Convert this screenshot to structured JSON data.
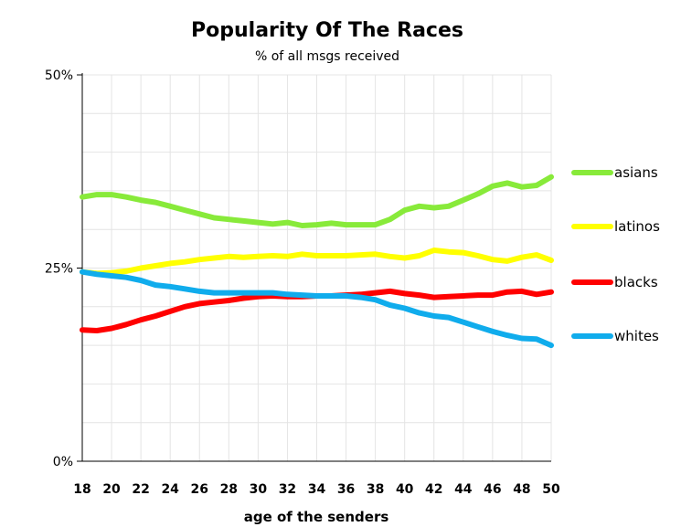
{
  "chart_data": {
    "type": "line",
    "title": "Popularity Of The Races",
    "subtitle": "% of all msgs received",
    "xlabel": "age of the senders",
    "ylabel": "",
    "x": [
      18,
      19,
      20,
      21,
      22,
      23,
      24,
      25,
      26,
      27,
      28,
      29,
      30,
      31,
      32,
      33,
      34,
      35,
      36,
      37,
      38,
      39,
      40,
      41,
      42,
      43,
      44,
      45,
      46,
      47,
      48,
      49,
      50
    ],
    "xlim": [
      18,
      50
    ],
    "ylim": [
      0,
      50
    ],
    "x_ticks": [
      "18",
      "20",
      "22",
      "24",
      "26",
      "28",
      "30",
      "32",
      "34",
      "36",
      "38",
      "40",
      "42",
      "44",
      "46",
      "48",
      "50"
    ],
    "y_ticks": [
      {
        "value": 0,
        "label": "0%"
      },
      {
        "value": 25,
        "label": "25%"
      },
      {
        "value": 50,
        "label": "50%"
      }
    ],
    "grid": true,
    "legend_position": "right",
    "series": [
      {
        "name": "asians",
        "color": "#88ea3a",
        "values": [
          34.2,
          34.5,
          34.5,
          34.2,
          33.8,
          33.5,
          33.0,
          32.5,
          32.0,
          31.5,
          31.3,
          31.1,
          30.9,
          30.7,
          30.9,
          30.5,
          30.6,
          30.8,
          30.6,
          30.6,
          30.6,
          31.3,
          32.5,
          33.0,
          32.8,
          33.0,
          33.8,
          34.6,
          35.6,
          36.0,
          35.5,
          35.7,
          36.8
        ]
      },
      {
        "name": "latinos",
        "color": "#ffff00",
        "values": [
          24.5,
          24.3,
          24.4,
          24.6,
          25.0,
          25.3,
          25.6,
          25.8,
          26.1,
          26.3,
          26.5,
          26.4,
          26.5,
          26.6,
          26.5,
          26.8,
          26.6,
          26.6,
          26.6,
          26.7,
          26.8,
          26.5,
          26.3,
          26.6,
          27.3,
          27.1,
          27.0,
          26.6,
          26.1,
          25.9,
          26.4,
          26.7,
          26.0
        ]
      },
      {
        "name": "blacks",
        "color": "#ff0000",
        "values": [
          17.0,
          16.9,
          17.2,
          17.7,
          18.3,
          18.8,
          19.4,
          20.0,
          20.4,
          20.6,
          20.8,
          21.1,
          21.3,
          21.4,
          21.3,
          21.3,
          21.4,
          21.4,
          21.5,
          21.6,
          21.8,
          22.0,
          21.7,
          21.5,
          21.2,
          21.3,
          21.4,
          21.5,
          21.5,
          21.9,
          22.0,
          21.6,
          21.9
        ]
      },
      {
        "name": "whites",
        "color": "#10acec",
        "values": [
          24.5,
          24.2,
          24.0,
          23.8,
          23.4,
          22.8,
          22.6,
          22.3,
          22.0,
          21.8,
          21.8,
          21.8,
          21.8,
          21.8,
          21.6,
          21.5,
          21.4,
          21.4,
          21.4,
          21.2,
          20.9,
          20.2,
          19.8,
          19.2,
          18.8,
          18.6,
          18.0,
          17.4,
          16.8,
          16.3,
          15.9,
          15.8,
          15.0
        ]
      }
    ]
  }
}
